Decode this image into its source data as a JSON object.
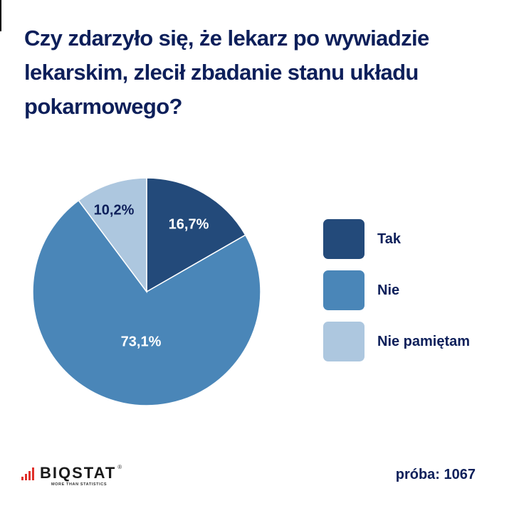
{
  "title": "Czy zdarzyło się, że lekarz po wywiadzie lekarskim, zlecił zbadanie stanu układu pokarmowego?",
  "colors": {
    "title": "#0d1f5a",
    "tak": "#234a7a",
    "nie": "#4a86b8",
    "nie_pamietam": "#adc7df"
  },
  "chart_data": {
    "type": "pie",
    "title": "Czy zdarzyło się, że lekarz po wywiadzie lekarskim, zlecił zbadanie stanu układu pokarmowego?",
    "categories": [
      "Tak",
      "Nie",
      "Nie pamiętam"
    ],
    "values": [
      16.7,
      73.1,
      10.2
    ],
    "value_labels": [
      "16,7%",
      "73,1%",
      "10,2%"
    ],
    "colors": [
      "#234a7a",
      "#4a86b8",
      "#adc7df"
    ],
    "start_angle": "12 o'clock, clockwise",
    "legend_position": "right"
  },
  "legend": [
    {
      "label": "Tak"
    },
    {
      "label": "Nie"
    },
    {
      "label": "Nie pamiętam"
    }
  ],
  "footer": {
    "logo_word": "BIQSTAT",
    "logo_tagline": "MORE THAN STATISTICS",
    "logo_reg": "®",
    "sample": "próba: 1067"
  }
}
